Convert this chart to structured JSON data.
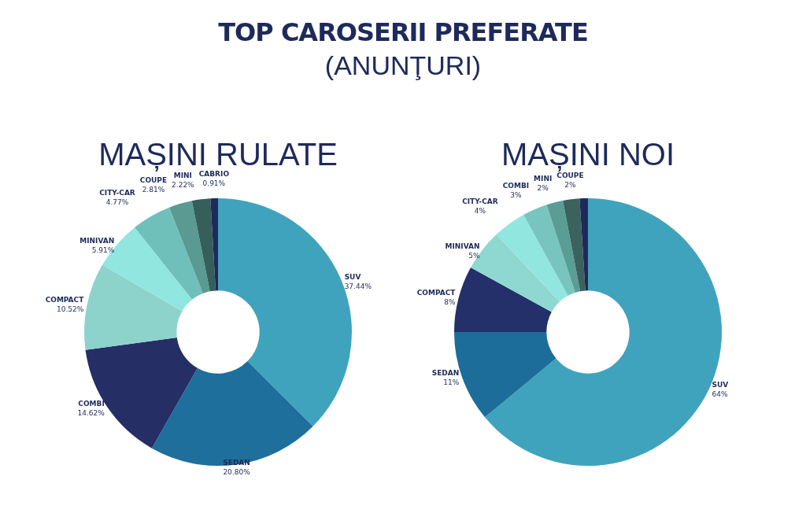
{
  "chart_data": [
    {
      "type": "other",
      "title": "TOP CAROSERII PREFERATE",
      "subtitle": "(ANUNŢURI)"
    },
    {
      "type": "donut",
      "title": "MAȘINI RULATE",
      "categories": [
        "SUV",
        "SEDAN",
        "COMBI",
        "COMPACT",
        "MINIVAN",
        "CITY-CAR",
        "COUPE",
        "MINI",
        "CABRIO"
      ],
      "values": [
        37.44,
        20.8,
        14.62,
        10.52,
        5.91,
        4.77,
        2.81,
        2.22,
        0.91
      ],
      "value_labels": [
        "37.44%",
        "20.80%",
        "14.62%",
        "10.52%",
        "5.91%",
        "4.77%",
        "2.81%",
        "2.22%",
        "0.91%"
      ],
      "colors": [
        "#3fa3bd",
        "#1e6f9b",
        "#262e66",
        "#8dd3cc",
        "#92e6e0",
        "#6fc0bb",
        "#5a9a92",
        "#365e5a",
        "#1e2a5a"
      ],
      "legend": false
    },
    {
      "type": "donut",
      "title": "MAȘINI NOI",
      "categories": [
        "SUV",
        "SEDAN",
        "COMPACT",
        "MINIVAN",
        "CITY-CAR",
        "COMBI",
        "MINI",
        "COUPE",
        null
      ],
      "values": [
        64,
        11,
        8,
        5,
        4,
        3,
        2,
        2,
        1
      ],
      "value_labels": [
        "64%",
        "11%",
        "8%",
        "5%",
        "4%",
        "3%",
        "2%",
        "2%",
        null
      ],
      "colors": [
        "#40a3bd",
        "#1d6d9a",
        "#233069",
        "#8fd8d2",
        "#92e6e0",
        "#77c5be",
        "#5a9d95",
        "#3b625d",
        "#1e2a5a"
      ],
      "legend": false
    }
  ]
}
